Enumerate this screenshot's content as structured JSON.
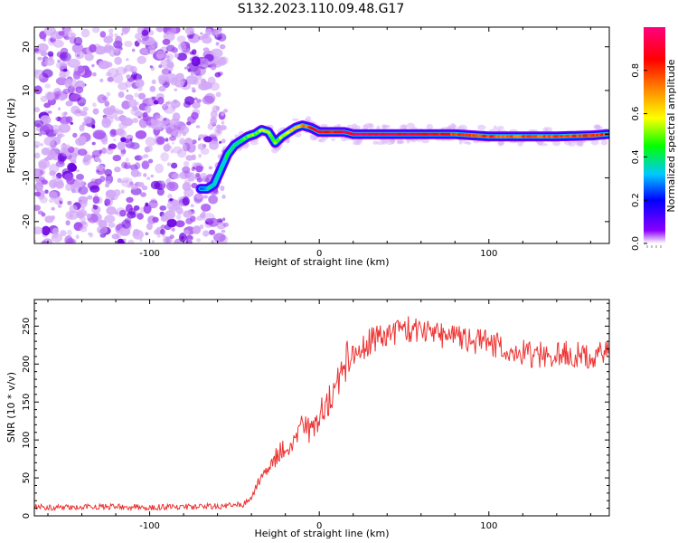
{
  "title": "S132.2023.110.09.48.G17",
  "chart_data": [
    {
      "type": "heatmap",
      "xlabel": "Height of straight line (km)",
      "ylabel": "Frequency (Hz)",
      "xlim": [
        -168,
        171
      ],
      "ylim": [
        -25,
        24.5
      ],
      "xticks": [
        -100,
        0,
        100
      ],
      "yticks": [
        -20,
        -10,
        0,
        10,
        20
      ],
      "grid": false,
      "colorbar": {
        "label": "Normalized spectral amplitude",
        "range": [
          0,
          1
        ],
        "ticks": [
          0.0,
          0.2,
          0.4,
          0.6,
          0.8
        ],
        "colormap": [
          "#ffffff",
          "#8a00ff",
          "#0000ff",
          "#00c8ff",
          "#00ff00",
          "#ffff00",
          "#ff8000",
          "#ff0000",
          "#ff0080"
        ]
      },
      "noise_region_x_max": -55,
      "ridge": {
        "x": [
          -70,
          -66,
          -62,
          -58,
          -54,
          -50,
          -46,
          -42,
          -38,
          -34,
          -30,
          -26,
          -22,
          -18,
          -14,
          -10,
          -5,
          0,
          5,
          10,
          15,
          20,
          40,
          60,
          80,
          100,
          120,
          140,
          160,
          170
        ],
        "y": [
          -12.5,
          -12.5,
          -11.5,
          -8.0,
          -4.5,
          -2.5,
          -1.5,
          -0.5,
          0.0,
          1.0,
          0.5,
          -2.0,
          -0.5,
          0.5,
          1.5,
          2.0,
          1.5,
          0.5,
          0.5,
          0.5,
          0.5,
          0.0,
          0.0,
          0.0,
          0.0,
          -0.5,
          -0.5,
          -0.5,
          -0.3,
          0.0
        ],
        "amplitude": [
          0.3,
          0.32,
          0.35,
          0.38,
          0.38,
          0.4,
          0.45,
          0.48,
          0.5,
          0.55,
          0.55,
          0.5,
          0.55,
          0.6,
          0.65,
          0.7,
          0.8,
          0.9,
          0.85,
          0.85,
          0.9,
          0.95,
          0.92,
          0.9,
          0.8,
          0.78,
          0.75,
          0.78,
          0.8,
          0.8
        ]
      }
    },
    {
      "type": "line",
      "xlabel": "Height of straight line (km)",
      "ylabel": "SNR (10 * v/v)",
      "xlim": [
        -168,
        171
      ],
      "ylim": [
        0,
        285
      ],
      "xticks": [
        -100,
        0,
        100
      ],
      "yticks": [
        0,
        50,
        100,
        150,
        200,
        250
      ],
      "grid": false,
      "color": "#ee3333",
      "series": [
        {
          "x": [
            -168,
            -150,
            -125,
            -100,
            -75,
            -55,
            -45,
            -40,
            -35,
            -30,
            -25,
            -20,
            -15,
            -10,
            -5,
            0,
            5,
            10,
            15,
            20,
            25,
            30,
            40,
            50,
            60,
            70,
            80,
            90,
            100,
            110,
            120,
            130,
            140,
            150,
            160,
            171
          ],
          "y": [
            12,
            11,
            12,
            11,
            12,
            13,
            15,
            25,
            50,
            60,
            80,
            90,
            100,
            120,
            110,
            130,
            150,
            170,
            195,
            210,
            220,
            230,
            240,
            245,
            245,
            240,
            235,
            232,
            228,
            220,
            215,
            212,
            212,
            213,
            210,
            215
          ]
        }
      ]
    }
  ]
}
